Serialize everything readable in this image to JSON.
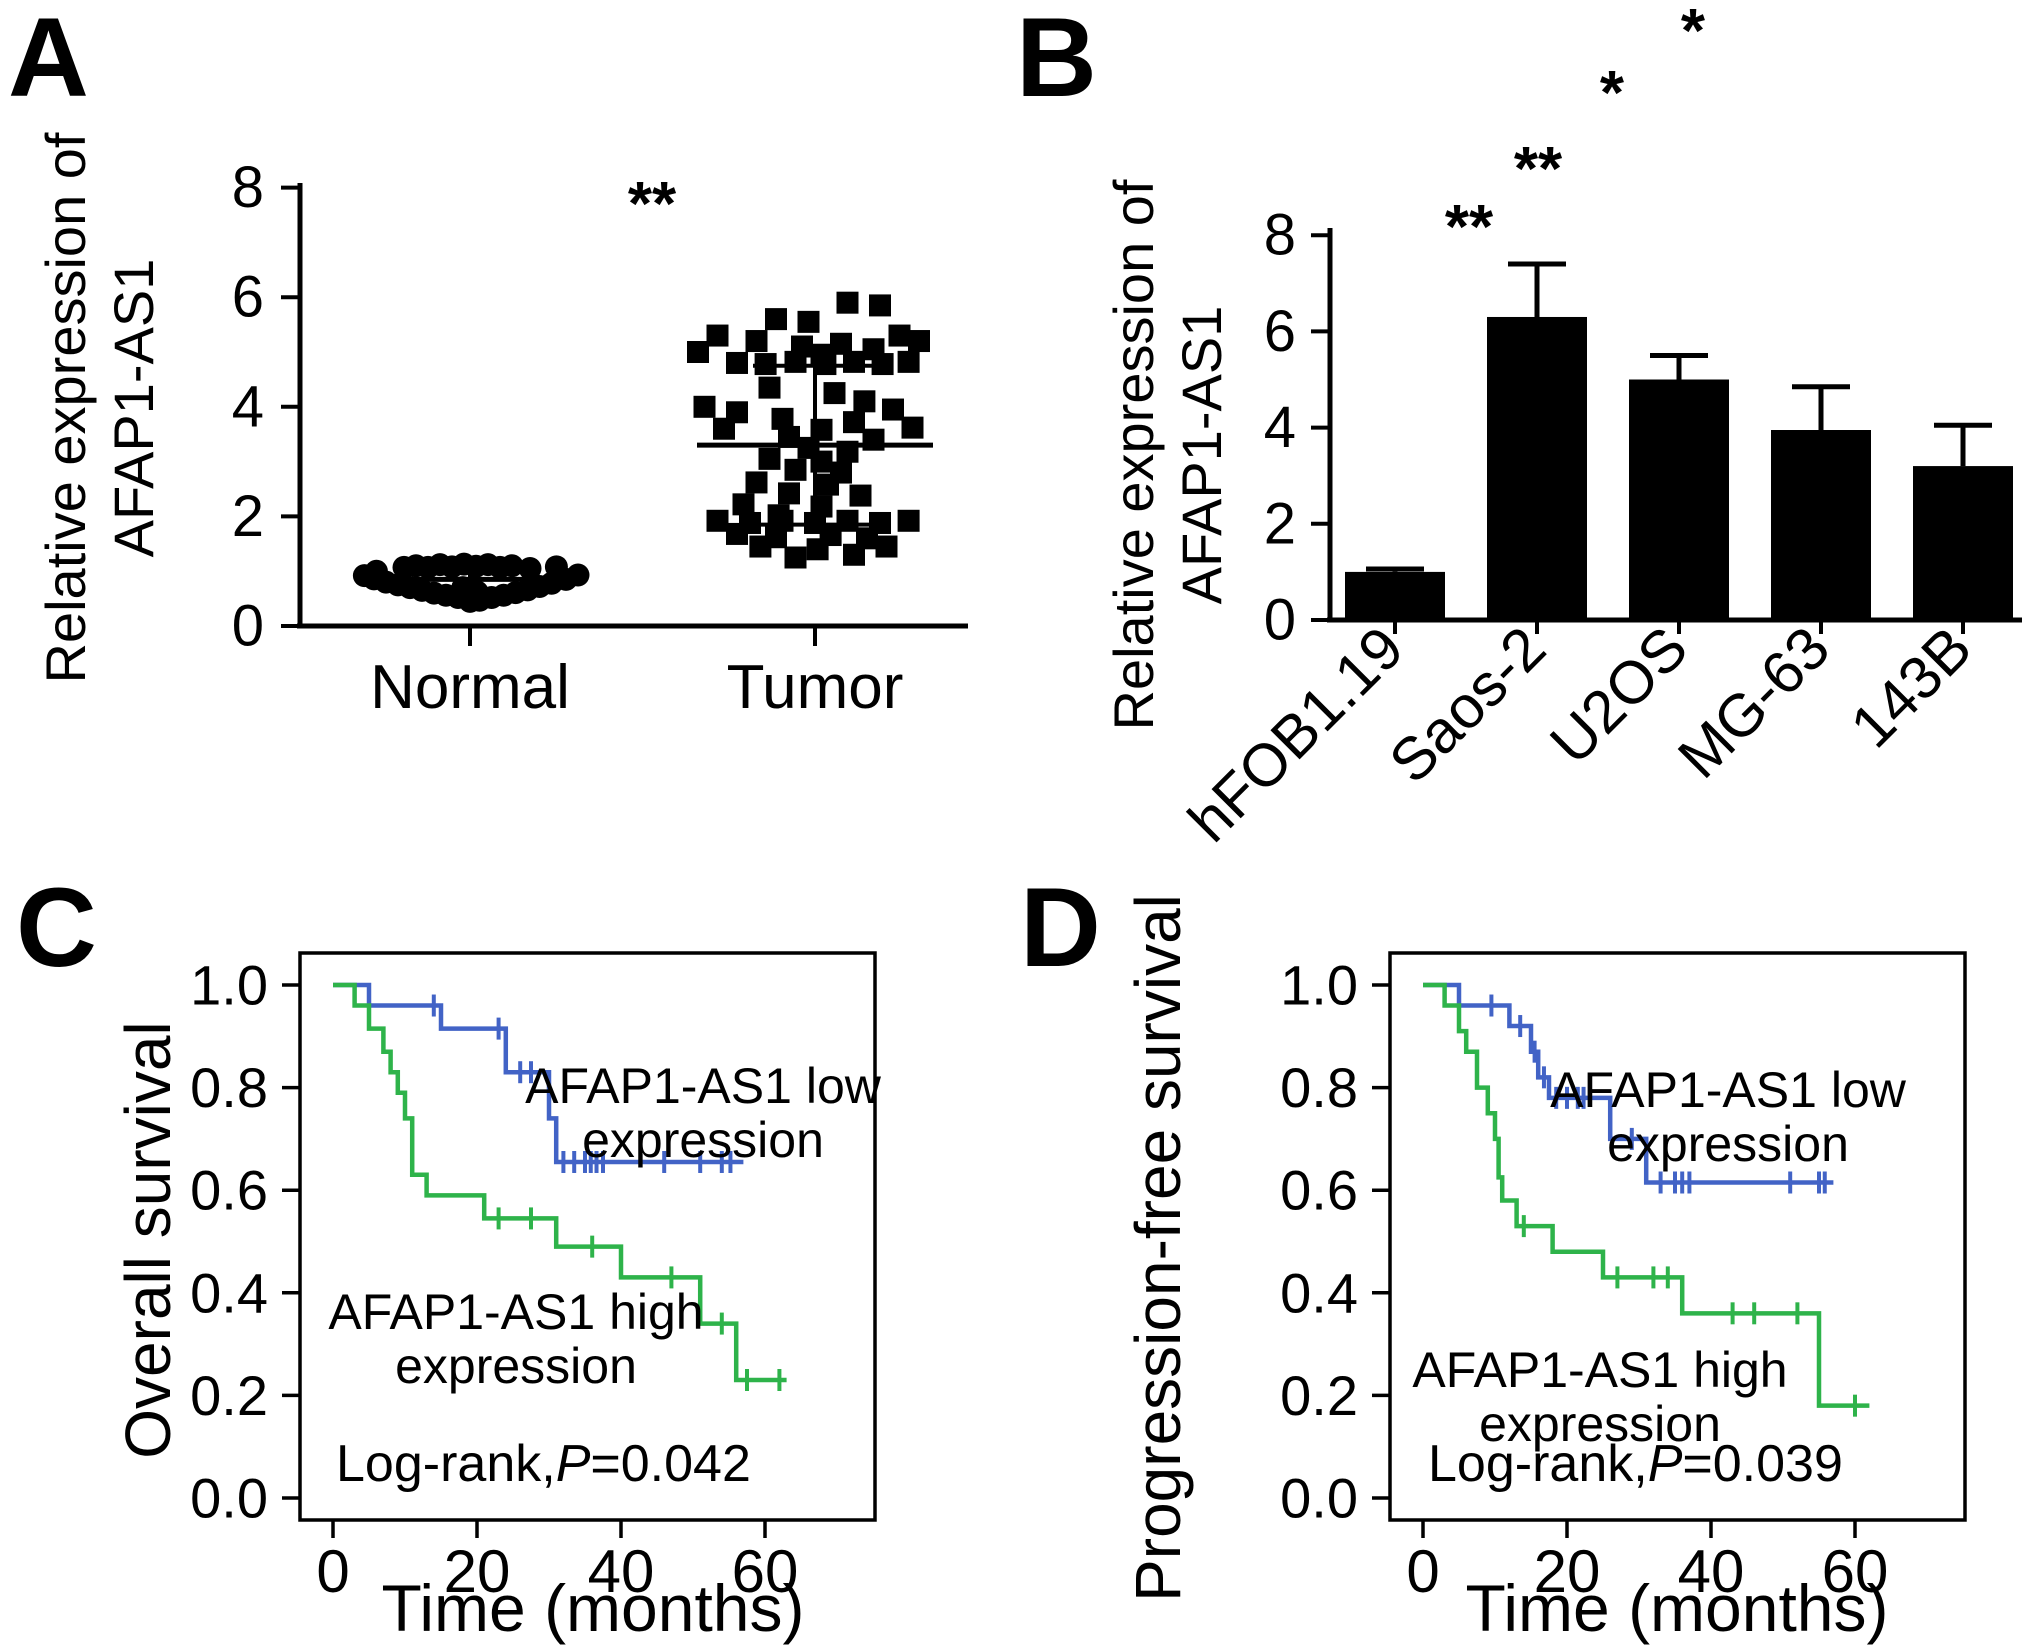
{
  "figure": {
    "background": "#ffffff",
    "axis_color": "#000000",
    "km_low_color": "#4263c6",
    "km_high_color": "#2eb34a"
  },
  "chart_data": [
    {
      "id": "A",
      "panel_label": "A",
      "type": "scatter",
      "ylabel": "Relative expression of AFAP1-AS1",
      "ylabel_lines": [
        "Relative expression of",
        "AFAP1-AS1"
      ],
      "ylim": [
        0,
        8
      ],
      "yticks": [
        0,
        2,
        4,
        6,
        8
      ],
      "categories": [
        "Normal",
        "Tumor"
      ],
      "significance": "**",
      "groups": [
        {
          "name": "Normal",
          "marker": "circle",
          "mean": 0.85,
          "err_low": 0.62,
          "err_high": 1.05,
          "points": [
            [
              -0.78,
              1.0
            ],
            [
              -0.55,
              1.07
            ],
            [
              -0.45,
              1.1
            ],
            [
              -0.35,
              1.07
            ],
            [
              -0.25,
              1.12
            ],
            [
              -0.15,
              1.08
            ],
            [
              -0.05,
              1.13
            ],
            [
              0.05,
              1.09
            ],
            [
              0.15,
              1.12
            ],
            [
              0.25,
              1.07
            ],
            [
              0.35,
              1.1
            ],
            [
              0.5,
              1.05
            ],
            [
              0.72,
              1.08
            ],
            [
              -0.88,
              0.92
            ],
            [
              -0.8,
              0.86
            ],
            [
              -0.7,
              0.8
            ],
            [
              -0.6,
              0.75
            ],
            [
              -0.5,
              0.7
            ],
            [
              -0.4,
              0.65
            ],
            [
              -0.3,
              0.6
            ],
            [
              -0.2,
              0.56
            ],
            [
              -0.1,
              0.52
            ],
            [
              0.0,
              0.45
            ],
            [
              0.08,
              0.47
            ],
            [
              0.18,
              0.52
            ],
            [
              0.28,
              0.56
            ],
            [
              0.38,
              0.61
            ],
            [
              0.48,
              0.66
            ],
            [
              0.58,
              0.72
            ],
            [
              0.68,
              0.78
            ],
            [
              0.8,
              0.85
            ],
            [
              0.9,
              0.93
            ],
            [
              -0.06,
              0.7
            ],
            [
              0.06,
              0.62
            ]
          ]
        },
        {
          "name": "Tumor",
          "marker": "square",
          "mean": 3.3,
          "err_low": 1.85,
          "err_high": 4.75,
          "points": [
            [
              0.25,
              5.9
            ],
            [
              0.5,
              5.85
            ],
            [
              -0.3,
              5.6
            ],
            [
              -0.05,
              5.55
            ],
            [
              -0.75,
              5.3
            ],
            [
              -0.45,
              5.2
            ],
            [
              0.65,
              5.3
            ],
            [
              -0.1,
              5.1
            ],
            [
              0.2,
              5.15
            ],
            [
              0.45,
              5.05
            ],
            [
              0.8,
              5.2
            ],
            [
              -0.9,
              5.0
            ],
            [
              0.05,
              4.95
            ],
            [
              -0.6,
              4.8
            ],
            [
              -0.38,
              4.78
            ],
            [
              -0.15,
              4.82
            ],
            [
              0.08,
              4.78
            ],
            [
              0.3,
              4.82
            ],
            [
              0.52,
              4.78
            ],
            [
              0.72,
              4.82
            ],
            [
              -0.35,
              4.35
            ],
            [
              0.15,
              4.25
            ],
            [
              -0.85,
              4.0
            ],
            [
              0.38,
              4.1
            ],
            [
              -0.6,
              3.9
            ],
            [
              0.6,
              3.95
            ],
            [
              -0.25,
              3.78
            ],
            [
              0.3,
              3.72
            ],
            [
              -0.7,
              3.6
            ],
            [
              0.05,
              3.58
            ],
            [
              0.75,
              3.62
            ],
            [
              -0.2,
              3.45
            ],
            [
              0.45,
              3.4
            ],
            [
              -0.05,
              3.25
            ],
            [
              0.25,
              3.18
            ],
            [
              -0.35,
              3.05
            ],
            [
              0.05,
              3.0
            ],
            [
              -0.15,
              2.85
            ],
            [
              0.2,
              2.8
            ],
            [
              -0.45,
              2.62
            ],
            [
              0.1,
              2.58
            ],
            [
              -0.2,
              2.42
            ],
            [
              0.35,
              2.38
            ],
            [
              -0.55,
              2.22
            ],
            [
              0.05,
              2.18
            ],
            [
              -0.28,
              2.02
            ],
            [
              -0.75,
              1.92
            ],
            [
              -0.5,
              1.88
            ],
            [
              -0.25,
              1.92
            ],
            [
              0.0,
              1.88
            ],
            [
              0.25,
              1.92
            ],
            [
              0.5,
              1.88
            ],
            [
              0.72,
              1.92
            ],
            [
              -0.6,
              1.68
            ],
            [
              -0.3,
              1.62
            ],
            [
              0.12,
              1.66
            ],
            [
              0.4,
              1.6
            ],
            [
              -0.42,
              1.45
            ],
            [
              0.02,
              1.4
            ],
            [
              0.55,
              1.45
            ],
            [
              -0.15,
              1.25
            ],
            [
              0.3,
              1.3
            ]
          ]
        }
      ]
    },
    {
      "id": "B",
      "panel_label": "B",
      "type": "bar",
      "ylabel": "Relative expression of AFAP1-AS1",
      "ylabel_lines": [
        "Relative expression of",
        "AFAP1-AS1"
      ],
      "ylim": [
        0,
        8
      ],
      "yticks": [
        0,
        2,
        4,
        6,
        8
      ],
      "categories": [
        "hFOB1.19",
        "Saos-2",
        "U2OS",
        "MG-63",
        "143B"
      ],
      "values": [
        1.0,
        6.3,
        5.0,
        3.95,
        3.2
      ],
      "errors": [
        0.06,
        1.1,
        0.5,
        0.9,
        0.85
      ],
      "bar_color": "#000000",
      "sig_annotations": [
        {
          "text": "**",
          "bar": "Saos-2"
        },
        {
          "text": "**",
          "bar": "U2OS"
        },
        {
          "text": "*",
          "bar": "MG-63"
        },
        {
          "text": "*",
          "bar": "143B"
        }
      ]
    },
    {
      "id": "C",
      "panel_label": "C",
      "type": "line",
      "subtype": "kaplan-meier",
      "ylabel": "Overall survival",
      "xlabel": "Time (months)",
      "ylim": [
        0,
        1.0
      ],
      "xlim": [
        0,
        75
      ],
      "ytick_labels": [
        "0.0",
        "0.2",
        "0.4",
        "0.6",
        "0.8",
        "1.0"
      ],
      "xticks": [
        0,
        20,
        40,
        60
      ],
      "legend_low": [
        "AFAP1-AS1 low",
        "expression"
      ],
      "legend_high": [
        "AFAP1-AS1 high",
        "expression"
      ],
      "logrank": {
        "prefix": "Log-rank,",
        "p": "P",
        "value": "=0.042"
      },
      "series": [
        {
          "name": "AFAP1-AS1 low expression",
          "color": "#4263c6",
          "steps": [
            [
              0,
              1.0
            ],
            [
              5,
              1.0
            ],
            [
              5,
              0.96
            ],
            [
              15,
              0.96
            ],
            [
              15,
              0.915
            ],
            [
              24,
              0.915
            ],
            [
              24,
              0.83
            ],
            [
              30,
              0.83
            ],
            [
              30,
              0.74
            ],
            [
              31,
              0.74
            ],
            [
              31,
              0.655
            ],
            [
              57,
              0.655
            ]
          ],
          "censors": [
            [
              14,
              0.96
            ],
            [
              23,
              0.915
            ],
            [
              26,
              0.83
            ],
            [
              27.5,
              0.83
            ],
            [
              32,
              0.655
            ],
            [
              33.5,
              0.655
            ],
            [
              35,
              0.655
            ],
            [
              35.8,
              0.655
            ],
            [
              36.6,
              0.655
            ],
            [
              37.5,
              0.655
            ],
            [
              46,
              0.655
            ],
            [
              51,
              0.655
            ],
            [
              54,
              0.655
            ],
            [
              55.2,
              0.655
            ]
          ]
        },
        {
          "name": "AFAP1-AS1 high expression",
          "color": "#2eb34a",
          "steps": [
            [
              0,
              1.0
            ],
            [
              3,
              1.0
            ],
            [
              3,
              0.96
            ],
            [
              5,
              0.96
            ],
            [
              5,
              0.915
            ],
            [
              7,
              0.915
            ],
            [
              7,
              0.87
            ],
            [
              8,
              0.87
            ],
            [
              8,
              0.83
            ],
            [
              9,
              0.83
            ],
            [
              9,
              0.79
            ],
            [
              10,
              0.79
            ],
            [
              10,
              0.74
            ],
            [
              11,
              0.74
            ],
            [
              11,
              0.63
            ],
            [
              13,
              0.63
            ],
            [
              13,
              0.59
            ],
            [
              21,
              0.59
            ],
            [
              21,
              0.545
            ],
            [
              31,
              0.545
            ],
            [
              31,
              0.49
            ],
            [
              40,
              0.49
            ],
            [
              40,
              0.43
            ],
            [
              51,
              0.43
            ],
            [
              51,
              0.34
            ],
            [
              56,
              0.34
            ],
            [
              56,
              0.23
            ],
            [
              63,
              0.23
            ]
          ],
          "censors": [
            [
              23,
              0.545
            ],
            [
              27.5,
              0.545
            ],
            [
              36,
              0.49
            ],
            [
              47,
              0.43
            ],
            [
              54,
              0.34
            ],
            [
              57.5,
              0.23
            ],
            [
              62,
              0.23
            ]
          ]
        }
      ]
    },
    {
      "id": "D",
      "panel_label": "D",
      "type": "line",
      "subtype": "kaplan-meier",
      "ylabel": "Progression-free survival",
      "xlabel": "Time (months)",
      "ylim": [
        0,
        1.0
      ],
      "xlim": [
        0,
        75
      ],
      "ytick_labels": [
        "0.0",
        "0.2",
        "0.4",
        "0.6",
        "0.8",
        "1.0"
      ],
      "xticks": [
        0,
        20,
        40,
        60
      ],
      "legend_low": [
        "AFAP1-AS1 low",
        "expression"
      ],
      "legend_high": [
        "AFAP1-AS1 high",
        "expression"
      ],
      "logrank": {
        "prefix": "Log-rank,",
        "p": "P",
        "value": "=0.039"
      },
      "series": [
        {
          "name": "AFAP1-AS1 low expression",
          "color": "#4263c6",
          "steps": [
            [
              0,
              1.0
            ],
            [
              5,
              1.0
            ],
            [
              5,
              0.96
            ],
            [
              12,
              0.96
            ],
            [
              12,
              0.92
            ],
            [
              15,
              0.92
            ],
            [
              15,
              0.87
            ],
            [
              16,
              0.87
            ],
            [
              16,
              0.82
            ],
            [
              17.5,
              0.82
            ],
            [
              17.5,
              0.78
            ],
            [
              26,
              0.78
            ],
            [
              26,
              0.7
            ],
            [
              31,
              0.7
            ],
            [
              31,
              0.615
            ],
            [
              57,
              0.615
            ]
          ],
          "censors": [
            [
              9.5,
              0.96
            ],
            [
              13.5,
              0.92
            ],
            [
              15.5,
              0.87
            ],
            [
              16.8,
              0.82
            ],
            [
              18.5,
              0.78
            ],
            [
              20,
              0.78
            ],
            [
              21.5,
              0.78
            ],
            [
              22.3,
              0.78
            ],
            [
              29,
              0.7
            ],
            [
              33,
              0.615
            ],
            [
              35,
              0.615
            ],
            [
              36,
              0.615
            ],
            [
              37,
              0.615
            ],
            [
              51,
              0.615
            ],
            [
              55,
              0.615
            ],
            [
              55.8,
              0.615
            ]
          ],
          "label": "AFAP1-AS1 low expression"
        },
        {
          "name": "AFAP1-AS1 high expression",
          "color": "#2eb34a",
          "steps": [
            [
              0,
              1.0
            ],
            [
              3,
              1.0
            ],
            [
              3,
              0.96
            ],
            [
              5,
              0.96
            ],
            [
              5,
              0.91
            ],
            [
              6,
              0.91
            ],
            [
              6,
              0.87
            ],
            [
              7.5,
              0.87
            ],
            [
              7.5,
              0.8
            ],
            [
              9,
              0.8
            ],
            [
              9,
              0.75
            ],
            [
              10,
              0.75
            ],
            [
              10,
              0.7
            ],
            [
              10.5,
              0.7
            ],
            [
              10.5,
              0.625
            ],
            [
              11,
              0.625
            ],
            [
              11,
              0.58
            ],
            [
              13,
              0.58
            ],
            [
              13,
              0.53
            ],
            [
              18,
              0.53
            ],
            [
              18,
              0.48
            ],
            [
              25,
              0.48
            ],
            [
              25,
              0.43
            ],
            [
              36,
              0.43
            ],
            [
              36,
              0.36
            ],
            [
              55,
              0.36
            ],
            [
              55,
              0.18
            ],
            [
              62,
              0.18
            ]
          ],
          "censors": [
            [
              14,
              0.53
            ],
            [
              27,
              0.43
            ],
            [
              32,
              0.43
            ],
            [
              34,
              0.43
            ],
            [
              43,
              0.36
            ],
            [
              46,
              0.36
            ],
            [
              52,
              0.36
            ],
            [
              60,
              0.18
            ]
          ],
          "label": "AFAP1-AS1 high expression"
        }
      ]
    }
  ]
}
